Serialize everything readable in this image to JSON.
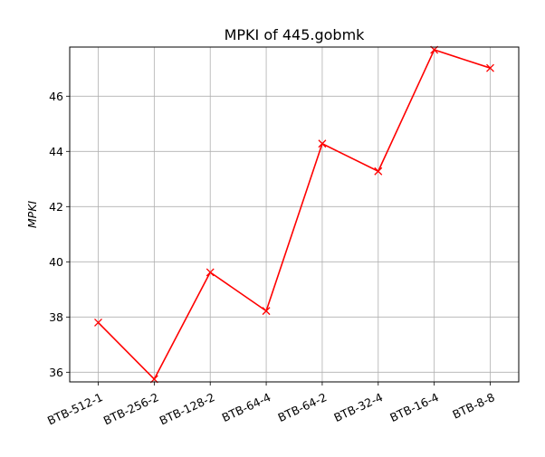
{
  "chart_data": {
    "type": "line",
    "title": "MPKI of 445.gobmk",
    "xlabel": "",
    "ylabel": "MPKI",
    "categories": [
      "BTB-512-1",
      "BTB-256-2",
      "BTB-128-2",
      "BTB-64-4",
      "BTB-64-2",
      "BTB-32-4",
      "BTB-16-4",
      "BTB-8-8"
    ],
    "series": [
      {
        "values": [
          37.8,
          35.75,
          39.62,
          38.22,
          44.28,
          43.28,
          47.68,
          47.02
        ],
        "color": "#ff0000",
        "marker": "x"
      }
    ],
    "ylim": [
      35.65,
      47.78
    ],
    "yticks": [
      36,
      38,
      40,
      42,
      44,
      46
    ],
    "grid": true,
    "xtick_rotation": "rotated"
  }
}
